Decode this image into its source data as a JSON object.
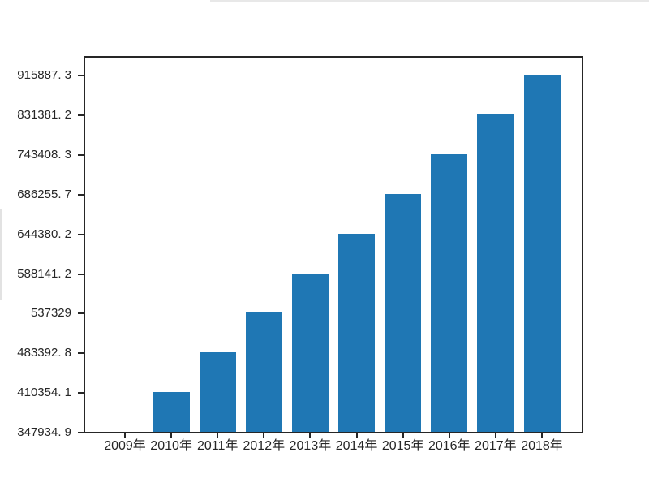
{
  "chart_data": {
    "type": "bar",
    "title": "",
    "categories": [
      "2009年",
      "2010年",
      "2011年",
      "2012年",
      "2013年",
      "2014年",
      "2015年",
      "2016年",
      "2017年",
      "2018年"
    ],
    "values": [
      347934.9,
      410354.1,
      483392.8,
      537329,
      588141.2,
      644380.2,
      686255.7,
      743408.3,
      831381.2,
      915887.3
    ],
    "y_tick_labels_bottom_to_top": [
      "347934. 9",
      "410354. 1",
      "483392. 8",
      "537329",
      "588141. 2",
      "644380. 2",
      "686255. 7",
      "743408. 3",
      "831381. 2",
      "915887. 3"
    ],
    "xlabel": "",
    "ylabel": "",
    "axis_note": "y ticks are placed at the data values and spaced evenly; each bar top aligns with its tick; 2009 bar has zero visible height (equals axis minimum)",
    "y_axis_min": 347934.9,
    "y_axis_max_tick": 915887.3,
    "grid": false,
    "legend": false,
    "bar_color": "#1f77b4",
    "axis_color": "#262626",
    "background_color": "#ffffff"
  }
}
